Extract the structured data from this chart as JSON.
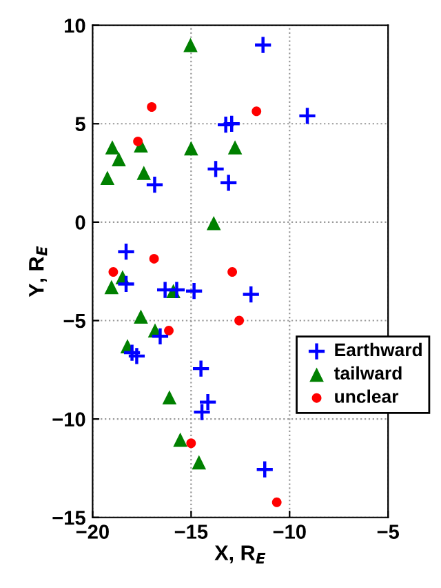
{
  "chart_data": {
    "type": "scatter",
    "xlabel": "X, R$_{E}$",
    "ylabel": "Y, R$_{E}$",
    "xlim": [
      -20,
      -5
    ],
    "ylim": [
      -15,
      10
    ],
    "xticks": [
      -20,
      -15,
      -10,
      -5
    ],
    "yticks": [
      -15,
      -10,
      -5,
      0,
      5,
      10
    ],
    "grid": true,
    "legend": "right",
    "series": [
      {
        "name": "Earthward",
        "color": "#0000ff",
        "marker": "cross",
        "x": [
          -11.35,
          -9.1,
          -13.24,
          -12.94,
          -13.75,
          -13.1,
          -16.85,
          -18.3,
          -18.3,
          -16.32,
          -15.73,
          -14.85,
          -11.96,
          -16.57,
          -18.0,
          -17.76,
          -14.5,
          -14.45,
          -14.15,
          -11.26
        ],
        "values": [
          9.0,
          5.4,
          4.95,
          5.0,
          2.7,
          2.0,
          1.9,
          -1.5,
          -3.14,
          -3.44,
          -3.44,
          -3.5,
          -3.67,
          -5.8,
          -6.63,
          -6.8,
          -7.44,
          -9.65,
          -9.14,
          -12.56
        ]
      },
      {
        "name": "tailward",
        "color": "#008000",
        "marker": "triangle",
        "x": [
          -15.03,
          -19.0,
          -18.67,
          -19.25,
          -17.55,
          -17.4,
          -15.0,
          -12.77,
          -13.85,
          -18.48,
          -19.04,
          -15.9,
          -17.55,
          -16.83,
          -18.23,
          -16.1,
          -15.55,
          -14.6
        ],
        "values": [
          9.0,
          3.8,
          3.2,
          2.25,
          3.9,
          2.5,
          3.75,
          3.8,
          -0.05,
          -2.8,
          -3.3,
          -3.5,
          -4.8,
          -5.5,
          -6.3,
          -8.9,
          -11.05,
          -12.2
        ]
      },
      {
        "name": "unclear",
        "color": "#ff0000",
        "marker": "circle",
        "x": [
          -17.0,
          -17.7,
          -11.68,
          -16.88,
          -18.95,
          -12.91,
          -12.56,
          -16.13,
          -15.0,
          -10.65
        ],
        "values": [
          5.85,
          4.1,
          5.63,
          -1.86,
          -2.53,
          -2.53,
          -5.0,
          -5.51,
          -11.23,
          -14.23
        ]
      }
    ]
  }
}
